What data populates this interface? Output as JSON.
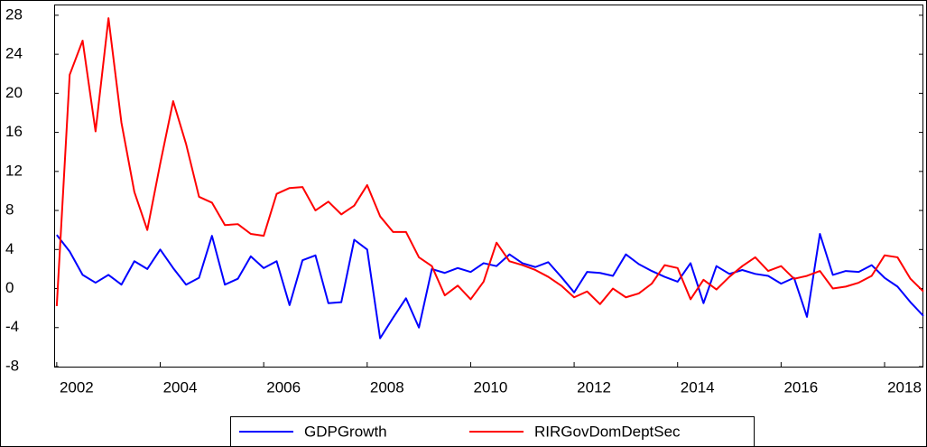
{
  "chart_data": {
    "type": "line",
    "x": [
      2002,
      2002.25,
      2002.5,
      2002.75,
      2003,
      2003.25,
      2003.5,
      2003.75,
      2004,
      2004.25,
      2004.5,
      2004.75,
      2005,
      2005.25,
      2005.5,
      2005.75,
      2006,
      2006.25,
      2006.5,
      2006.75,
      2007,
      2007.25,
      2007.5,
      2007.75,
      2008,
      2008.25,
      2008.5,
      2008.75,
      2009,
      2009.25,
      2009.5,
      2009.75,
      2010,
      2010.25,
      2010.5,
      2010.75,
      2011,
      2011.25,
      2011.5,
      2011.75,
      2012,
      2012.25,
      2012.5,
      2012.75,
      2013,
      2013.25,
      2013.5,
      2013.75,
      2014,
      2014.25,
      2014.5,
      2014.75,
      2015,
      2015.25,
      2015.5,
      2015.75,
      2016,
      2016.25,
      2016.5,
      2016.75,
      2017,
      2017.25,
      2017.5,
      2017.75,
      2018,
      2018.25,
      2018.5,
      2018.75
    ],
    "series": [
      {
        "name": "GDPGrowth",
        "color": "#0000ff",
        "values": [
          5.5,
          3.8,
          1.4,
          0.6,
          1.4,
          0.4,
          2.8,
          2.0,
          4.0,
          2.1,
          0.4,
          1.1,
          5.4,
          0.4,
          1.0,
          3.3,
          2.1,
          2.8,
          -1.7,
          2.9,
          3.4,
          -1.5,
          -1.4,
          5.0,
          4.0,
          -5.1,
          -3.0,
          -1.0,
          -4.0,
          2.0,
          1.6,
          2.1,
          1.7,
          2.6,
          2.3,
          3.5,
          2.6,
          2.2,
          2.7,
          1.2,
          -0.4,
          1.7,
          1.6,
          1.3,
          3.5,
          2.5,
          1.8,
          1.2,
          0.7,
          2.6,
          -1.5,
          2.3,
          1.5,
          1.9,
          1.5,
          1.3,
          0.5,
          1.1,
          -2.9,
          5.6,
          1.4,
          1.8,
          1.7,
          2.4,
          1.1,
          0.2,
          -1.4,
          -2.8
        ]
      },
      {
        "name": "RIRGovDomDeptSec",
        "color": "#ff0000",
        "values": [
          -1.8,
          21.9,
          25.4,
          16.1,
          27.7,
          17.0,
          9.9,
          6.0,
          12.8,
          19.2,
          14.8,
          9.4,
          8.8,
          6.5,
          6.6,
          5.6,
          5.4,
          9.7,
          10.3,
          10.4,
          8.0,
          8.9,
          7.6,
          8.5,
          10.6,
          7.4,
          5.8,
          5.8,
          3.2,
          2.3,
          -0.7,
          0.3,
          -1.1,
          0.7,
          4.7,
          2.8,
          2.4,
          1.9,
          1.2,
          0.3,
          -0.9,
          -0.3,
          -1.6,
          0.0,
          -0.9,
          -0.5,
          0.5,
          2.4,
          2.1,
          -1.1,
          0.9,
          -0.1,
          1.2,
          2.3,
          3.2,
          1.8,
          2.3,
          1.0,
          1.3,
          1.8,
          0.0,
          0.2,
          0.6,
          1.3,
          3.4,
          3.2,
          1.0,
          -0.3
        ]
      }
    ],
    "xlim": [
      2001.95,
      2018.75
    ],
    "xticks": [
      2002,
      2004,
      2006,
      2008,
      2010,
      2012,
      2014,
      2016,
      2018
    ],
    "ylim": [
      -8,
      29.1
    ],
    "yticks": [
      -8,
      -4,
      0,
      4,
      8,
      12,
      16,
      20,
      24,
      28
    ],
    "grid": false
  }
}
